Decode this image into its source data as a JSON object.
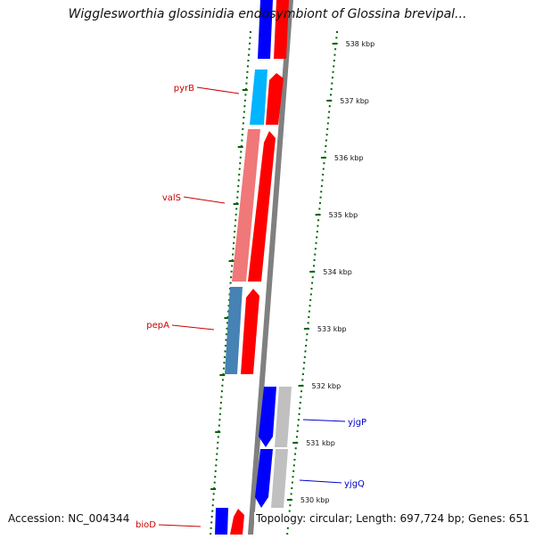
{
  "title": "Wigglesworthia glossinidia endosymbiont of Glossina brevipal...",
  "footer": {
    "accession": "Accession: NC_004344",
    "topology": "Topology: circular; Length: 697,724 bp; Genes: 651"
  },
  "colors": {
    "forward_gene": "#ff0000",
    "reverse_gene": "#0000ff",
    "backbone": "#808080",
    "ticks": "#006400",
    "label_red": "#cc0000",
    "label_blue": "#0000cc"
  },
  "axis": {
    "unit": "kbp",
    "labels": [
      "538 kbp",
      "537 kbp",
      "536 kbp",
      "535 kbp",
      "534 kbp",
      "533 kbp",
      "532 kbp",
      "531 kbp",
      "530 kbp"
    ]
  },
  "genes": [
    {
      "name": "pyrB",
      "strand": "reverse",
      "color": "#00b4ff"
    },
    {
      "name": "valS",
      "strand": "reverse",
      "color": "#f07878"
    },
    {
      "name": "pepA",
      "strand": "reverse",
      "color": "#4682b4"
    },
    {
      "name": "yjgP",
      "strand": "reverse",
      "color": "#0000ff"
    },
    {
      "name": "yjgQ",
      "strand": "reverse",
      "color": "#0000ff"
    },
    {
      "name": "bioD",
      "strand": "reverse",
      "color": "#0000ff"
    }
  ]
}
